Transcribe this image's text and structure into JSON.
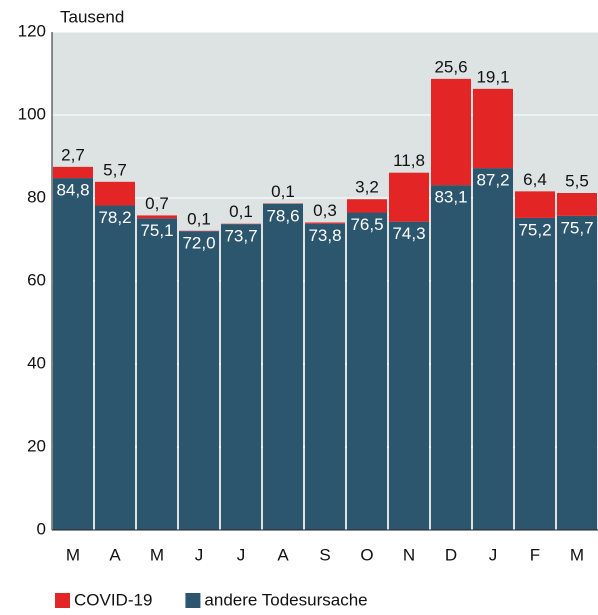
{
  "chart_data": {
    "type": "stacked_bar",
    "y_unit_label": "Tausend",
    "categories": [
      "M",
      "A",
      "M",
      "J",
      "J",
      "A",
      "S",
      "O",
      "N",
      "D",
      "J",
      "F",
      "M"
    ],
    "series": [
      {
        "name": "andere Todesursache",
        "color": "#2c566d",
        "values": [
          84.8,
          78.2,
          75.1,
          72.0,
          73.7,
          78.6,
          73.8,
          76.5,
          74.3,
          83.1,
          87.2,
          75.2,
          75.7
        ],
        "value_labels": [
          "84,8",
          "78,2",
          "75,1",
          "72,0",
          "73,7",
          "78,6",
          "73,8",
          "76,5",
          "74,3",
          "83,1",
          "87,2",
          "75,2",
          "75,7"
        ]
      },
      {
        "name": "COVID-19",
        "color": "#e32526",
        "values": [
          2.7,
          5.7,
          0.7,
          0.1,
          0.1,
          0.1,
          0.3,
          3.2,
          11.8,
          25.6,
          19.1,
          6.4,
          5.5
        ],
        "value_labels": [
          "2,7",
          "5,7",
          "0,7",
          "0,1",
          "0,1",
          "0,1",
          "0,3",
          "3,2",
          "11,8",
          "25,6",
          "19,1",
          "6,4",
          "5,5"
        ]
      }
    ],
    "ylim": [
      0,
      120
    ],
    "yticks": [
      0,
      20,
      40,
      60,
      80,
      100,
      120
    ],
    "grid": true,
    "legend_order": [
      "COVID-19",
      "andere Todesursache"
    ]
  }
}
